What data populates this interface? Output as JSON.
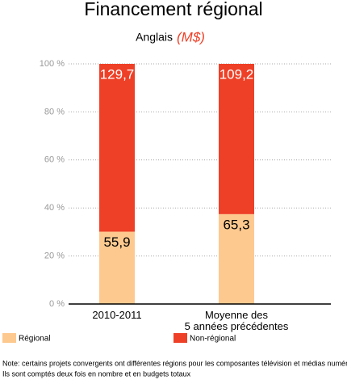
{
  "chart_data": {
    "type": "bar",
    "stacking": "percent",
    "title": "Financement régional",
    "subtitle": "Anglais",
    "unit": "(M$)",
    "categories": [
      "2010-2011",
      "Moyenne des\n5 années précédentes"
    ],
    "series": [
      {
        "name": "Régional",
        "color": "#fdc98f",
        "values": [
          55.9,
          65.3
        ],
        "value_labels": [
          "55,9",
          "65,3"
        ]
      },
      {
        "name": "Non-régional",
        "color": "#ee4027",
        "values": [
          129.7,
          109.2
        ],
        "value_labels": [
          "129,7",
          "109,2"
        ]
      }
    ],
    "ylim": [
      0,
      100
    ],
    "yticks": [
      {
        "value": 0,
        "label": "0 %"
      },
      {
        "value": 20,
        "label": "20 %"
      },
      {
        "value": 40,
        "label": "40 %"
      },
      {
        "value": 60,
        "label": "60 %"
      },
      {
        "value": 80,
        "label": "80 %"
      },
      {
        "value": 100,
        "label": "100 %"
      }
    ],
    "grid": true,
    "notes": [
      "Note: certains projets convergents ont différentes régions pour les composantes télévision et médias numériques",
      "Ils sont comptés deux fois en nombre et en budgets totaux"
    ]
  }
}
